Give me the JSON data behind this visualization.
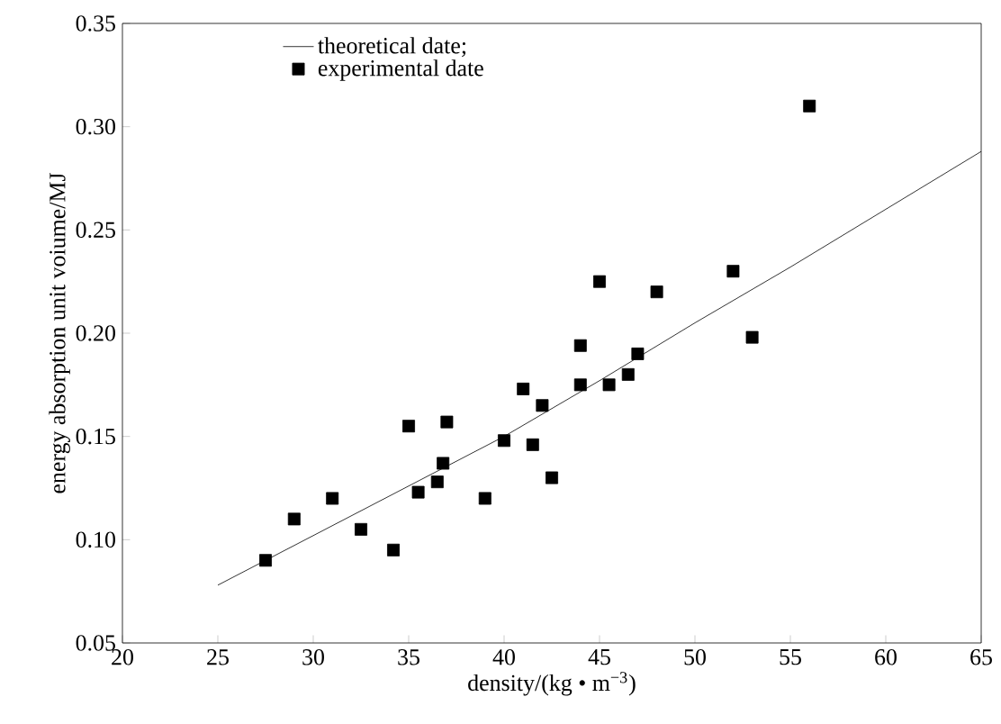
{
  "chart_data": {
    "type": "scatter",
    "xlabel": "density/(kg • m$^{−3}$)",
    "ylabel": "energy absorption unit voiume/MJ",
    "xlim": [
      20,
      65
    ],
    "xticks": [
      20,
      25,
      30,
      35,
      40,
      45,
      50,
      55,
      60,
      65
    ],
    "ylim": [
      0.05,
      0.35
    ],
    "yticks": [
      {
        "value": 0.05,
        "label": "0.05"
      },
      {
        "value": 0.1,
        "label": "0.10"
      },
      {
        "value": 0.15,
        "label": "0.15"
      },
      {
        "value": 0.2,
        "label": "0.20"
      },
      {
        "value": 0.25,
        "label": "0.25"
      },
      {
        "value": 0.3,
        "label": "0.30"
      },
      {
        "value": 0.35,
        "label": "0.35"
      }
    ],
    "legend": "top left",
    "grid": false,
    "series": [
      {
        "name": "theoretical date;",
        "type": "line",
        "color": "#000000",
        "marker": "none",
        "line_style": "solid",
        "x": [
          25,
          30,
          35,
          40,
          45,
          50,
          55,
          60,
          65
        ],
        "values": [
          0.078,
          0.102,
          0.126,
          0.15,
          0.177,
          0.205,
          0.232,
          0.26,
          0.288
        ]
      },
      {
        "name": "experimental date",
        "color": "#000000",
        "marker": "square",
        "x": [
          27.5,
          29,
          31,
          32.5,
          34.2,
          35,
          35.5,
          36.5,
          36.8,
          37,
          39,
          40,
          41,
          41.5,
          42,
          42.5,
          44,
          44,
          45,
          45.5,
          46.5,
          47,
          48,
          52,
          53,
          56
        ],
        "values": [
          0.09,
          0.11,
          0.12,
          0.105,
          0.095,
          0.155,
          0.123,
          0.128,
          0.137,
          0.157,
          0.12,
          0.148,
          0.173,
          0.146,
          0.165,
          0.13,
          0.175,
          0.194,
          0.225,
          0.175,
          0.18,
          0.19,
          0.22,
          0.23,
          0.198,
          0.31
        ]
      }
    ]
  }
}
